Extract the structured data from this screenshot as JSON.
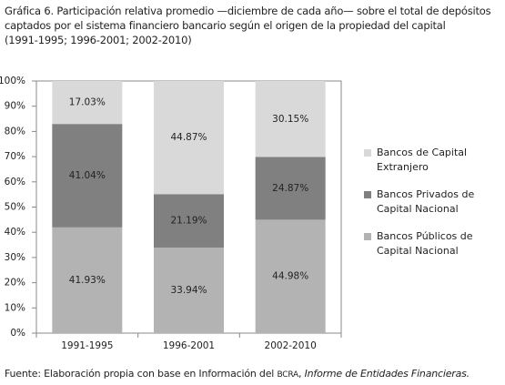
{
  "chart_data": {
    "type": "stacked-bar",
    "title": "Gráfica 6. Participación relativa promedio —diciembre de cada año— sobre el total de depósitos captados por el sistema financiero bancario según el origen de la propiedad del capital",
    "subtitle": "(1991-1995; 1996-2001; 2002-2010)",
    "categories": [
      "1991-1995",
      "1996-2001",
      "2002-2010"
    ],
    "series": [
      {
        "name": "Bancos Públicos de Capital Nacional",
        "color": "#b3b3b3",
        "values": [
          41.93,
          33.94,
          44.98
        ],
        "value_labels": [
          "41.93%",
          "33.94%",
          "44.98%"
        ]
      },
      {
        "name": "Bancos Privados de Capital Nacional",
        "color": "#808080",
        "values": [
          41.04,
          21.19,
          24.87
        ],
        "value_labels": [
          "41.04%",
          "21.19%",
          "24.87%"
        ]
      },
      {
        "name": "Bancos de Capital Extranjero",
        "color": "#d9d9d9",
        "values": [
          17.03,
          44.87,
          30.15
        ],
        "value_labels": [
          "17.03%",
          "44.87%",
          "30.15%"
        ]
      }
    ],
    "ylim": [
      0,
      100
    ],
    "yticks": [
      {
        "value": 0,
        "label": "0%"
      },
      {
        "value": 10,
        "label": "10%"
      },
      {
        "value": 20,
        "label": "20%"
      },
      {
        "value": 30,
        "label": "30%"
      },
      {
        "value": 40,
        "label": "40%"
      },
      {
        "value": 50,
        "label": "50%"
      },
      {
        "value": 60,
        "label": "60%"
      },
      {
        "value": 70,
        "label": "70%"
      },
      {
        "value": 80,
        "label": "80%"
      },
      {
        "value": 90,
        "label": "90%"
      },
      {
        "value": 100,
        "label": "100%"
      }
    ],
    "grid": false,
    "legend_position": "right",
    "source": {
      "prefix": "Fuente: Elaboración propia con base en Información del ",
      "acronym": "BCRA",
      "separator": ", ",
      "italic": "Informe de Entidades Financieras."
    }
  }
}
